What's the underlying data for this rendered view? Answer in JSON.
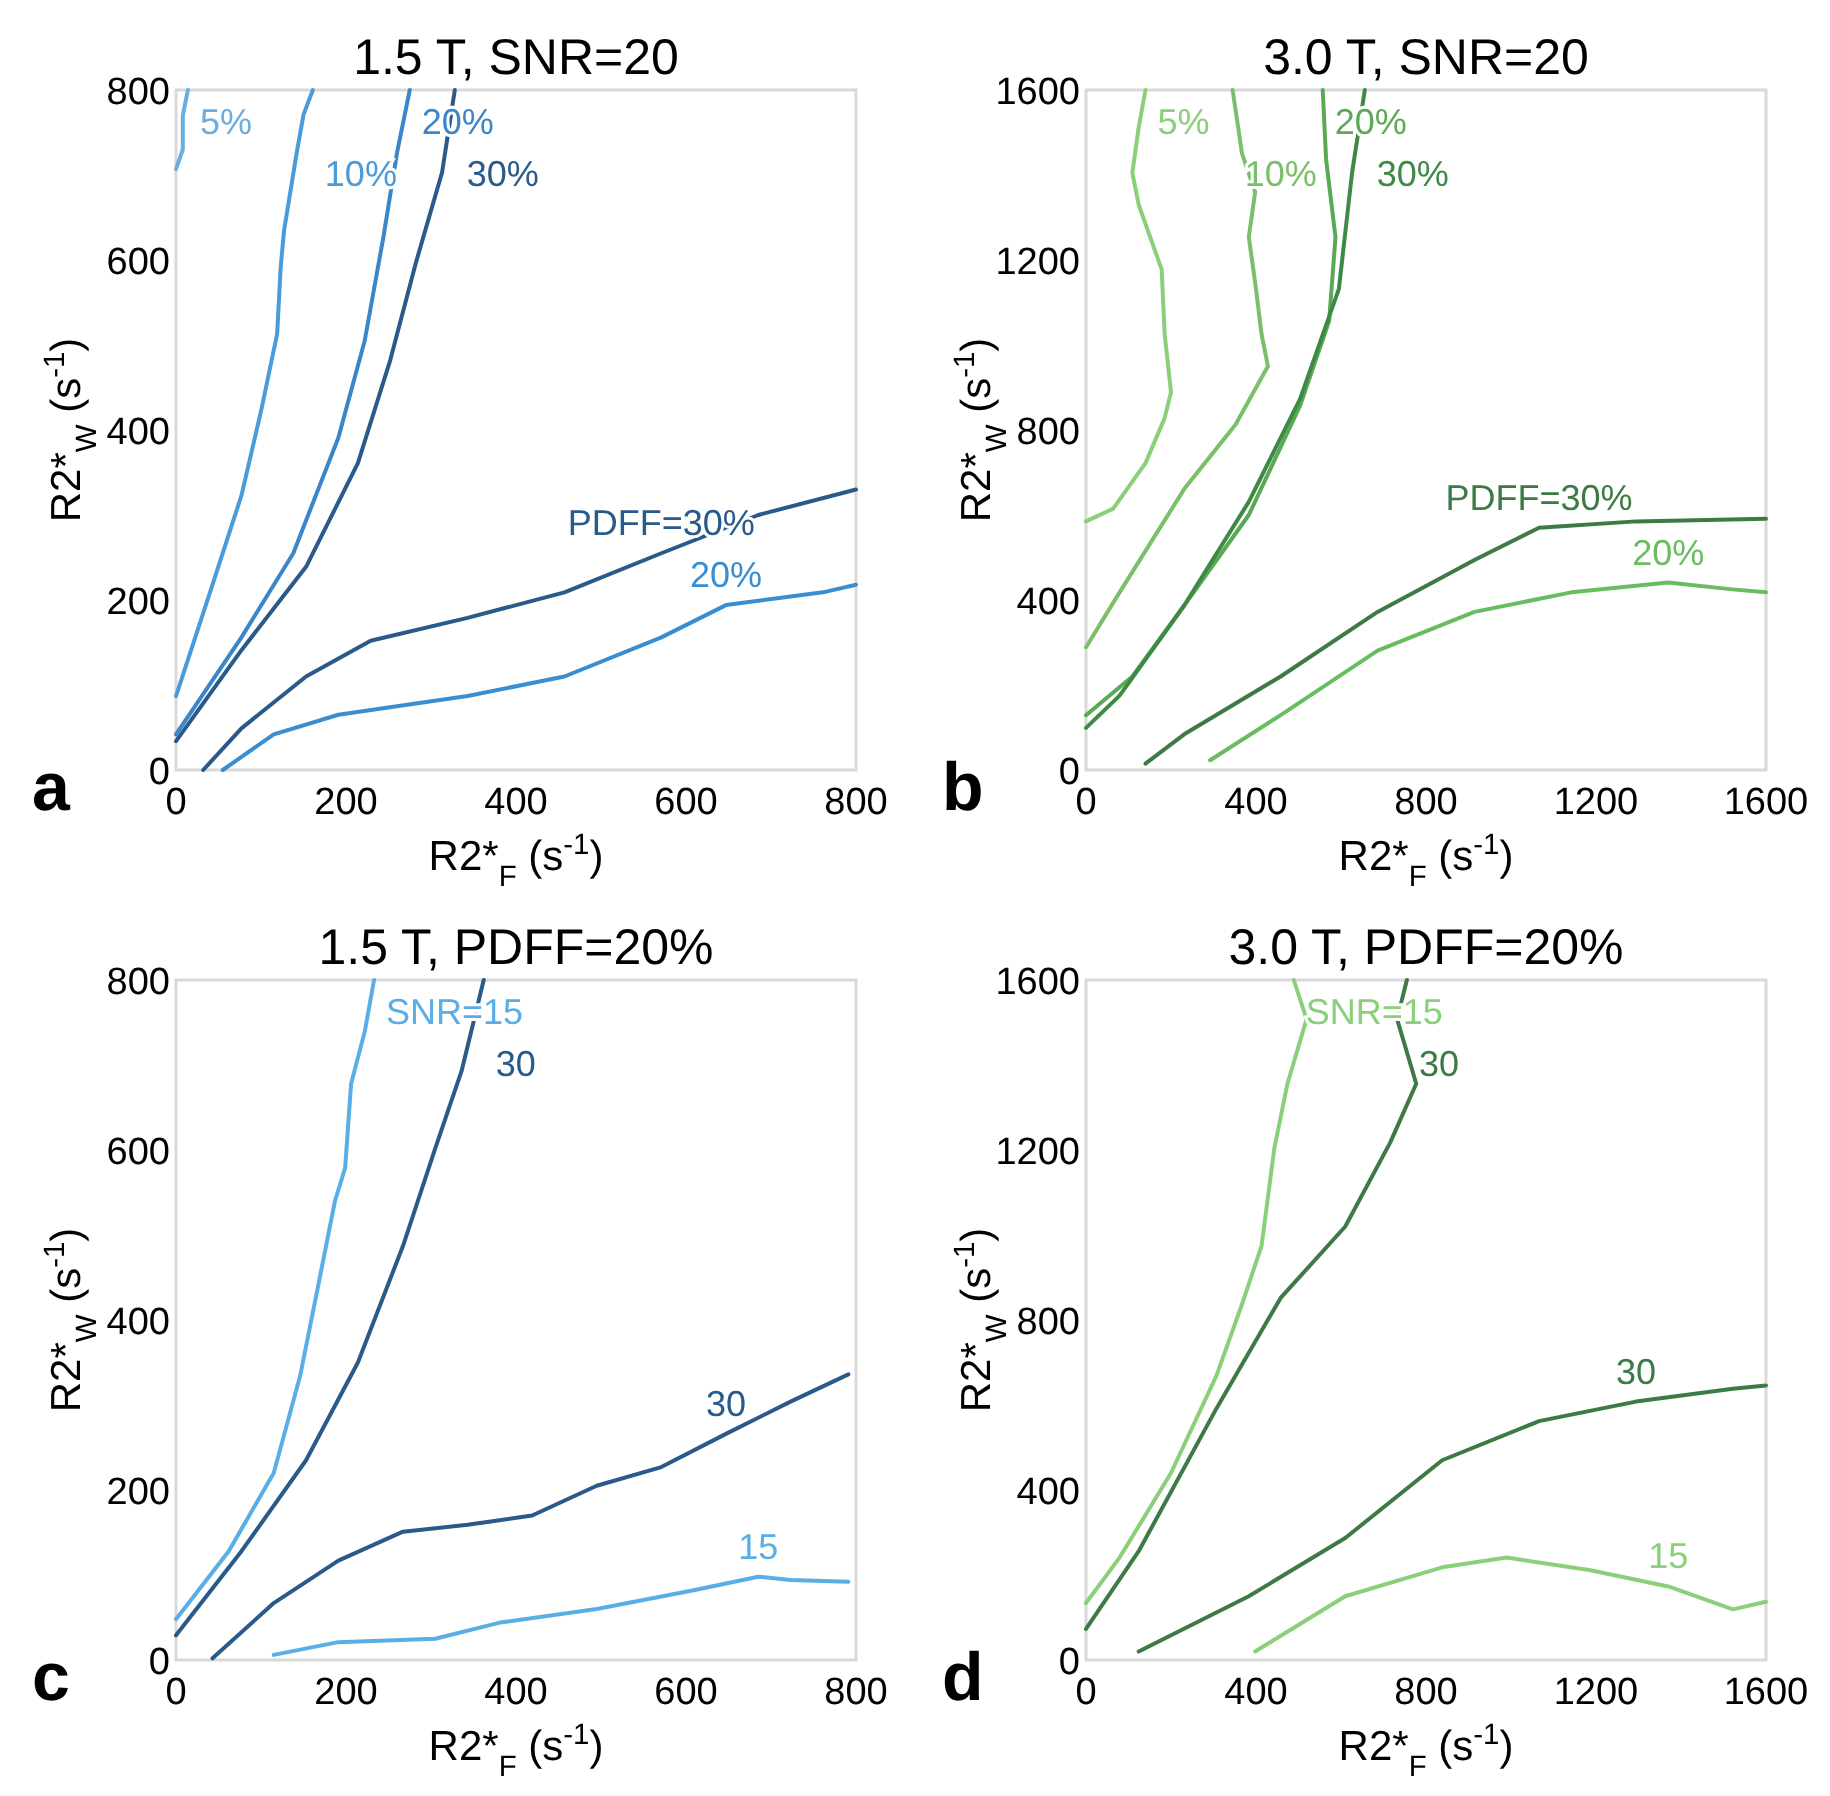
{
  "chart_data": [
    {
      "type": "line",
      "title": "1.5 T, SNR=20",
      "xlabel": "R2*$_{F}$ (s$^{-1}$)",
      "ylabel": "R2*$_{W}$ (s$^{-1}$)",
      "xlim": [
        0,
        800
      ],
      "ylim": [
        0,
        800
      ],
      "xticks": [
        0,
        200,
        400,
        600,
        800
      ],
      "yticks": [
        0,
        200,
        400,
        600,
        800
      ],
      "grid": false,
      "series": [
        {
          "name": "5%",
          "color": "#6aaee0",
          "x": [
            0,
            8,
            8,
            14
          ],
          "values": [
            707,
            730,
            770,
            800
          ]
        },
        {
          "name": "10%",
          "color": "#4a9bd8",
          "x": [
            0,
            40,
            77,
            100,
            119,
            123,
            127,
            142,
            150,
            161
          ],
          "values": [
            87,
            209,
            323,
            422,
            513,
            589,
            634,
            726,
            771,
            800
          ]
        },
        {
          "name": "20%",
          "color": "#3a86c8",
          "x": [
            0,
            77,
            138,
            191,
            222,
            244,
            260,
            275
          ],
          "values": [
            42,
            156,
            255,
            391,
            505,
            627,
            726,
            800
          ]
        },
        {
          "name": "30%",
          "color": "#2a5a8a",
          "x": [
            0,
            77,
            153,
            214,
            252,
            282,
            313,
            328
          ],
          "values": [
            34,
            141,
            239,
            361,
            482,
            596,
            703,
            800
          ]
        },
        {
          "name": "PDFF=30%",
          "color": "#2a5a8a",
          "x": [
            32,
            77,
            153,
            229,
            343,
            457,
            571,
            685,
            800
          ],
          "values": [
            0,
            49,
            110,
            152,
            179,
            209,
            255,
            300,
            330
          ]
        },
        {
          "name": "20%",
          "color": "#3a8ed0",
          "x": [
            55,
            115,
            191,
            343,
            457,
            571,
            647,
            761,
            800
          ],
          "values": [
            0,
            42,
            65,
            87,
            110,
            156,
            194,
            209,
            218
          ]
        }
      ],
      "annotations": [
        "a"
      ]
    },
    {
      "type": "line",
      "title": "3.0 T, SNR=20",
      "xlabel": "R2*$_{F}$ (s$^{-1}$)",
      "ylabel": "R2*$_{W}$ (s$^{-1}$)",
      "xlim": [
        0,
        1600
      ],
      "ylim": [
        0,
        1600
      ],
      "xticks": [
        0,
        400,
        800,
        1200,
        1600
      ],
      "yticks": [
        0,
        400,
        800,
        1200,
        1600
      ],
      "grid": false,
      "series": [
        {
          "name": "5%",
          "color": "#8ccf7a",
          "x": [
            0,
            64,
            140,
            185,
            200,
            185,
            178,
            124,
            109,
            124,
            140
          ],
          "values": [
            585,
            615,
            722,
            828,
            889,
            1026,
            1178,
            1330,
            1405,
            1512,
            1600
          ]
        },
        {
          "name": "10%",
          "color": "#7ac06a",
          "x": [
            0,
            79,
            231,
            352,
            428,
            413,
            398,
            383,
            398,
            367,
            345
          ],
          "values": [
            289,
            418,
            661,
            813,
            950,
            1026,
            1147,
            1254,
            1360,
            1451,
            1600
          ]
        },
        {
          "name": "20%",
          "color": "#5aaa55",
          "x": [
            0,
            109,
            231,
            383,
            504,
            572,
            587,
            565,
            557
          ],
          "values": [
            129,
            220,
            387,
            600,
            858,
            1056,
            1254,
            1436,
            1600
          ]
        },
        {
          "name": "30%",
          "color": "#3e8a45",
          "x": [
            0,
            79,
            231,
            383,
            504,
            595,
            626,
            656
          ],
          "values": [
            99,
            175,
            387,
            631,
            874,
            1132,
            1405,
            1600
          ]
        },
        {
          "name": "PDFF=30%",
          "color": "#3e7a45",
          "x": [
            140,
            231,
            458,
            686,
            914,
            1066,
            1294,
            1600
          ],
          "values": [
            15,
            84,
            220,
            372,
            494,
            570,
            585,
            591
          ]
        },
        {
          "name": "20%",
          "color": "#6abc60",
          "x": [
            292,
            458,
            686,
            914,
            1142,
            1370,
            1521,
            1600
          ],
          "values": [
            23,
            129,
            281,
            372,
            418,
            441,
            425,
            418
          ]
        }
      ],
      "annotations": [
        "b"
      ]
    },
    {
      "type": "line",
      "title": "1.5 T, PDFF=20%",
      "xlabel": "R2*$_{F}$ (s$^{-1}$)",
      "ylabel": "R2*$_{W}$ (s$^{-1}$)",
      "xlim": [
        0,
        800
      ],
      "ylim": [
        0,
        800
      ],
      "xticks": [
        0,
        200,
        400,
        600,
        800
      ],
      "yticks": [
        0,
        200,
        400,
        600,
        800
      ],
      "grid": false,
      "series": [
        {
          "name": "SNR=15",
          "color": "#5aaee6",
          "x": [
            0,
            62,
            115,
            146,
            169,
            187,
            199,
            206,
            222,
            233
          ],
          "values": [
            48,
            128,
            220,
            334,
            449,
            540,
            579,
            678,
            739,
            800
          ]
        },
        {
          "name": "30",
          "color": "#2a5a8a",
          "x": [
            0,
            77,
            153,
            214,
            267,
            305,
            336,
            362
          ],
          "values": [
            29,
            128,
            235,
            350,
            487,
            602,
            693,
            800
          ]
        },
        {
          "name": "30",
          "color": "#2a5a8a",
          "x": [
            43,
            115,
            191,
            267,
            343,
            419,
            495,
            571,
            647,
            723,
            791
          ],
          "values": [
            2,
            67,
            117,
            151,
            159,
            170,
            205,
            227,
            266,
            304,
            336
          ]
        },
        {
          "name": "15",
          "color": "#5aaee6",
          "x": [
            115,
            191,
            305,
            381,
            495,
            609,
            685,
            723,
            791
          ],
          "values": [
            6,
            21,
            25,
            44,
            60,
            82,
            98,
            94,
            92
          ]
        }
      ],
      "annotations": [
        "c"
      ]
    },
    {
      "type": "line",
      "title": "3.0 T, PDFF=20%",
      "xlabel": "R2*$_{F}$ (s$^{-1}$)",
      "ylabel": "R2*$_{W}$ (s$^{-1}$)",
      "xlim": [
        0,
        1600
      ],
      "ylim": [
        0,
        1600
      ],
      "xticks": [
        0,
        400,
        800,
        1200,
        1600
      ],
      "yticks": [
        0,
        400,
        800,
        1200,
        1600
      ],
      "grid": false,
      "series": [
        {
          "name": "SNR=15",
          "color": "#8ccf7a",
          "x": [
            0,
            79,
            200,
            307,
            367,
            413,
            443,
            474,
            519,
            489
          ],
          "values": [
            134,
            241,
            440,
            669,
            837,
            974,
            1203,
            1356,
            1508,
            1600
          ]
        },
        {
          "name": "30",
          "color": "#3e7a45",
          "x": [
            0,
            124,
            307,
            458,
            610,
            716,
            777,
            732,
            755
          ],
          "values": [
            73,
            256,
            592,
            852,
            1020,
            1218,
            1356,
            1508,
            1600
          ]
        },
        {
          "name": "30",
          "color": "#3e7a45",
          "x": [
            124,
            383,
            610,
            838,
            1066,
            1294,
            1522,
            1600
          ],
          "values": [
            20,
            150,
            287,
            470,
            562,
            608,
            638,
            646
          ]
        },
        {
          "name": "15",
          "color": "#8ccf7a",
          "x": [
            398,
            610,
            838,
            990,
            1187,
            1370,
            1522,
            1600
          ],
          "values": [
            20,
            150,
            218,
            241,
            211,
            173,
            119,
            137
          ]
        }
      ],
      "annotations": [
        "d"
      ]
    }
  ]
}
